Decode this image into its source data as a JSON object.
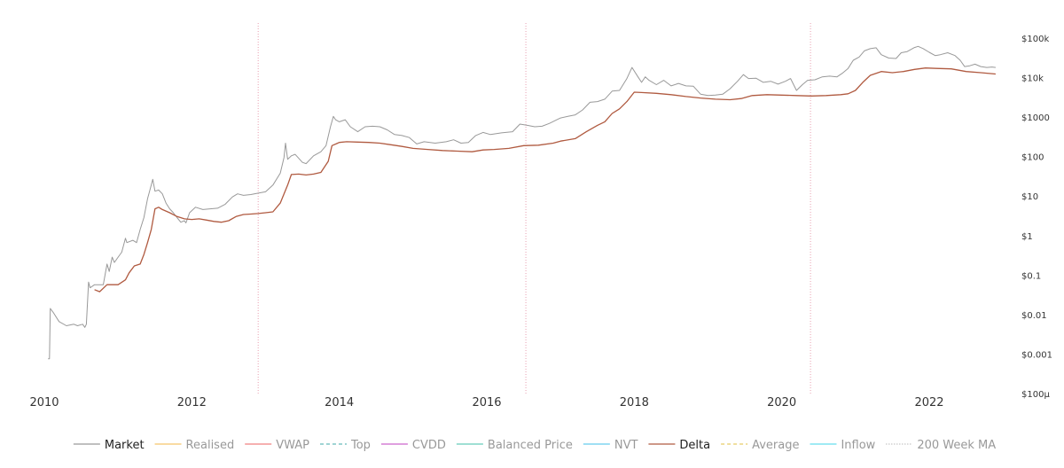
{
  "chart_data": {
    "type": "line",
    "xlim": [
      2010.0,
      2022.9
    ],
    "ylog": true,
    "ylim": [
      0.0001,
      100000
    ],
    "x_ticks": [
      {
        "value": 2010,
        "label": "2010"
      },
      {
        "value": 2012,
        "label": "2012"
      },
      {
        "value": 2014,
        "label": "2014"
      },
      {
        "value": 2016,
        "label": "2016"
      },
      {
        "value": 2018,
        "label": "2018"
      },
      {
        "value": 2020,
        "label": "2020"
      },
      {
        "value": 2022,
        "label": "2022"
      }
    ],
    "y_ticks": [
      {
        "value": 100000,
        "label": "$100k"
      },
      {
        "value": 10000,
        "label": "$10k"
      },
      {
        "value": 1000,
        "label": "$1000"
      },
      {
        "value": 100,
        "label": "$100"
      },
      {
        "value": 10,
        "label": "$10"
      },
      {
        "value": 1,
        "label": "$1"
      },
      {
        "value": 0.1,
        "label": "$0.1"
      },
      {
        "value": 0.01,
        "label": "$0.01"
      },
      {
        "value": 0.001,
        "label": "$0.001"
      },
      {
        "value": 0.0001,
        "label": "$100µ"
      }
    ],
    "halving_lines": [
      2012.9,
      2016.53,
      2020.39
    ],
    "grid": false,
    "legend_position": "bottom",
    "legend": [
      {
        "name": "Market",
        "color": "#999999",
        "dash": "solid",
        "active": true
      },
      {
        "name": "Realised",
        "color": "#f5c56b",
        "dash": "solid",
        "active": false
      },
      {
        "name": "VWAP",
        "color": "#f08080",
        "dash": "solid",
        "active": false
      },
      {
        "name": "Top",
        "color": "#66bbbb",
        "dash": "dashed",
        "active": false
      },
      {
        "name": "CVDD",
        "color": "#cc66cc",
        "dash": "solid",
        "active": false
      },
      {
        "name": "Balanced Price",
        "color": "#66ccbb",
        "dash": "solid",
        "active": false
      },
      {
        "name": "NVT",
        "color": "#66ccee",
        "dash": "solid",
        "active": false
      },
      {
        "name": "Delta",
        "color": "#b05a40",
        "dash": "solid",
        "active": true
      },
      {
        "name": "Average",
        "color": "#e8cc66",
        "dash": "dashed",
        "active": false
      },
      {
        "name": "Inflow",
        "color": "#66ddee",
        "dash": "solid",
        "active": false
      },
      {
        "name": "200 Week MA",
        "color": "#aaaaaa",
        "dash": "dotted",
        "active": false
      }
    ],
    "series": [
      {
        "name": "Market",
        "color": "#999999",
        "points": [
          [
            2010.05,
            0.0008
          ],
          [
            2010.07,
            0.0008
          ],
          [
            2010.08,
            0.015
          ],
          [
            2010.12,
            0.012
          ],
          [
            2010.2,
            0.007
          ],
          [
            2010.3,
            0.0055
          ],
          [
            2010.4,
            0.006
          ],
          [
            2010.45,
            0.0055
          ],
          [
            2010.52,
            0.006
          ],
          [
            2010.55,
            0.005
          ],
          [
            2010.57,
            0.006
          ],
          [
            2010.6,
            0.07
          ],
          [
            2010.62,
            0.05
          ],
          [
            2010.68,
            0.06
          ],
          [
            2010.75,
            0.06
          ],
          [
            2010.8,
            0.06
          ],
          [
            2010.85,
            0.2
          ],
          [
            2010.88,
            0.13
          ],
          [
            2010.92,
            0.3
          ],
          [
            2010.95,
            0.22
          ],
          [
            2011.0,
            0.3
          ],
          [
            2011.05,
            0.4
          ],
          [
            2011.1,
            0.9
          ],
          [
            2011.12,
            0.7
          ],
          [
            2011.2,
            0.8
          ],
          [
            2011.25,
            0.7
          ],
          [
            2011.3,
            1.5
          ],
          [
            2011.35,
            3
          ],
          [
            2011.4,
            9
          ],
          [
            2011.45,
            20
          ],
          [
            2011.47,
            28
          ],
          [
            2011.5,
            14
          ],
          [
            2011.55,
            15
          ],
          [
            2011.6,
            12
          ],
          [
            2011.65,
            7
          ],
          [
            2011.7,
            5
          ],
          [
            2011.75,
            4
          ],
          [
            2011.8,
            3
          ],
          [
            2011.85,
            2.3
          ],
          [
            2011.9,
            2.5
          ],
          [
            2011.92,
            2.2
          ],
          [
            2011.97,
            4
          ],
          [
            2012.05,
            5.5
          ],
          [
            2012.15,
            4.8
          ],
          [
            2012.25,
            5
          ],
          [
            2012.35,
            5.2
          ],
          [
            2012.45,
            6.5
          ],
          [
            2012.55,
            10
          ],
          [
            2012.62,
            12
          ],
          [
            2012.7,
            11
          ],
          [
            2012.8,
            11.5
          ],
          [
            2012.9,
            12.5
          ],
          [
            2013.0,
            13.5
          ],
          [
            2013.1,
            20
          ],
          [
            2013.2,
            40
          ],
          [
            2013.25,
            100
          ],
          [
            2013.27,
            230
          ],
          [
            2013.3,
            90
          ],
          [
            2013.35,
            110
          ],
          [
            2013.4,
            120
          ],
          [
            2013.5,
            75
          ],
          [
            2013.55,
            70
          ],
          [
            2013.65,
            110
          ],
          [
            2013.75,
            140
          ],
          [
            2013.82,
            200
          ],
          [
            2013.88,
            600
          ],
          [
            2013.92,
            1100
          ],
          [
            2013.95,
            900
          ],
          [
            2014.0,
            800
          ],
          [
            2014.08,
            900
          ],
          [
            2014.15,
            600
          ],
          [
            2014.25,
            450
          ],
          [
            2014.35,
            600
          ],
          [
            2014.45,
            620
          ],
          [
            2014.55,
            600
          ],
          [
            2014.65,
            500
          ],
          [
            2014.75,
            380
          ],
          [
            2014.85,
            360
          ],
          [
            2014.95,
            320
          ],
          [
            2015.05,
            220
          ],
          [
            2015.15,
            250
          ],
          [
            2015.3,
            230
          ],
          [
            2015.45,
            250
          ],
          [
            2015.55,
            280
          ],
          [
            2015.65,
            230
          ],
          [
            2015.75,
            240
          ],
          [
            2015.85,
            360
          ],
          [
            2015.95,
            430
          ],
          [
            2016.05,
            380
          ],
          [
            2016.2,
            420
          ],
          [
            2016.35,
            450
          ],
          [
            2016.45,
            700
          ],
          [
            2016.55,
            650
          ],
          [
            2016.65,
            600
          ],
          [
            2016.75,
            620
          ],
          [
            2016.85,
            730
          ],
          [
            2016.95,
            900
          ],
          [
            2017.0,
            1000
          ],
          [
            2017.1,
            1100
          ],
          [
            2017.2,
            1200
          ],
          [
            2017.3,
            1600
          ],
          [
            2017.4,
            2500
          ],
          [
            2017.5,
            2600
          ],
          [
            2017.6,
            3000
          ],
          [
            2017.7,
            4800
          ],
          [
            2017.8,
            5000
          ],
          [
            2017.9,
            10000
          ],
          [
            2017.97,
            19000
          ],
          [
            2018.05,
            11000
          ],
          [
            2018.1,
            8000
          ],
          [
            2018.15,
            11000
          ],
          [
            2018.2,
            9000
          ],
          [
            2018.3,
            7000
          ],
          [
            2018.4,
            9000
          ],
          [
            2018.5,
            6500
          ],
          [
            2018.6,
            7500
          ],
          [
            2018.7,
            6500
          ],
          [
            2018.8,
            6400
          ],
          [
            2018.9,
            4000
          ],
          [
            2019.0,
            3700
          ],
          [
            2019.1,
            3800
          ],
          [
            2019.2,
            4000
          ],
          [
            2019.3,
            5500
          ],
          [
            2019.4,
            8500
          ],
          [
            2019.48,
            12500
          ],
          [
            2019.55,
            10000
          ],
          [
            2019.65,
            10200
          ],
          [
            2019.75,
            8000
          ],
          [
            2019.85,
            8500
          ],
          [
            2019.95,
            7200
          ],
          [
            2020.05,
            8500
          ],
          [
            2020.12,
            10000
          ],
          [
            2020.2,
            5000
          ],
          [
            2020.28,
            7000
          ],
          [
            2020.35,
            9000
          ],
          [
            2020.45,
            9300
          ],
          [
            2020.55,
            11000
          ],
          [
            2020.65,
            11500
          ],
          [
            2020.75,
            11000
          ],
          [
            2020.82,
            13500
          ],
          [
            2020.9,
            18000
          ],
          [
            2020.97,
            29000
          ],
          [
            2021.05,
            35000
          ],
          [
            2021.12,
            50000
          ],
          [
            2021.2,
            57000
          ],
          [
            2021.28,
            60000
          ],
          [
            2021.35,
            40000
          ],
          [
            2021.45,
            33000
          ],
          [
            2021.55,
            32000
          ],
          [
            2021.62,
            45000
          ],
          [
            2021.7,
            48000
          ],
          [
            2021.8,
            61000
          ],
          [
            2021.85,
            65000
          ],
          [
            2021.92,
            57000
          ],
          [
            2022.0,
            46000
          ],
          [
            2022.08,
            38000
          ],
          [
            2022.15,
            40000
          ],
          [
            2022.25,
            45000
          ],
          [
            2022.35,
            38000
          ],
          [
            2022.42,
            29000
          ],
          [
            2022.48,
            20000
          ],
          [
            2022.55,
            21000
          ],
          [
            2022.62,
            23000
          ],
          [
            2022.7,
            20000
          ],
          [
            2022.78,
            19000
          ],
          [
            2022.85,
            19500
          ],
          [
            2022.9,
            19000
          ]
        ]
      },
      {
        "name": "Delta",
        "color": "#b05a40",
        "points": [
          [
            2010.68,
            0.045
          ],
          [
            2010.75,
            0.04
          ],
          [
            2010.85,
            0.06
          ],
          [
            2011.0,
            0.06
          ],
          [
            2011.1,
            0.08
          ],
          [
            2011.15,
            0.12
          ],
          [
            2011.22,
            0.18
          ],
          [
            2011.3,
            0.2
          ],
          [
            2011.35,
            0.35
          ],
          [
            2011.4,
            0.7
          ],
          [
            2011.45,
            1.5
          ],
          [
            2011.5,
            5
          ],
          [
            2011.55,
            5.5
          ],
          [
            2011.6,
            4.8
          ],
          [
            2011.7,
            4
          ],
          [
            2011.8,
            3.2
          ],
          [
            2011.9,
            2.8
          ],
          [
            2012.0,
            2.7
          ],
          [
            2012.1,
            2.8
          ],
          [
            2012.2,
            2.6
          ],
          [
            2012.3,
            2.4
          ],
          [
            2012.4,
            2.3
          ],
          [
            2012.5,
            2.5
          ],
          [
            2012.6,
            3.2
          ],
          [
            2012.7,
            3.6
          ],
          [
            2012.8,
            3.7
          ],
          [
            2012.9,
            3.8
          ],
          [
            2013.0,
            4
          ],
          [
            2013.1,
            4.2
          ],
          [
            2013.2,
            7
          ],
          [
            2013.3,
            20
          ],
          [
            2013.35,
            37
          ],
          [
            2013.45,
            38
          ],
          [
            2013.55,
            36
          ],
          [
            2013.65,
            38
          ],
          [
            2013.75,
            42
          ],
          [
            2013.85,
            80
          ],
          [
            2013.9,
            200
          ],
          [
            2014.0,
            240
          ],
          [
            2014.1,
            250
          ],
          [
            2014.25,
            245
          ],
          [
            2014.4,
            240
          ],
          [
            2014.55,
            230
          ],
          [
            2014.7,
            210
          ],
          [
            2014.85,
            190
          ],
          [
            2015.0,
            170
          ],
          [
            2015.2,
            160
          ],
          [
            2015.4,
            150
          ],
          [
            2015.6,
            145
          ],
          [
            2015.8,
            140
          ],
          [
            2015.95,
            155
          ],
          [
            2016.1,
            160
          ],
          [
            2016.3,
            170
          ],
          [
            2016.5,
            200
          ],
          [
            2016.7,
            205
          ],
          [
            2016.9,
            230
          ],
          [
            2017.0,
            260
          ],
          [
            2017.2,
            300
          ],
          [
            2017.35,
            450
          ],
          [
            2017.5,
            650
          ],
          [
            2017.6,
            800
          ],
          [
            2017.7,
            1300
          ],
          [
            2017.8,
            1700
          ],
          [
            2017.9,
            2600
          ],
          [
            2018.0,
            4500
          ],
          [
            2018.1,
            4400
          ],
          [
            2018.3,
            4200
          ],
          [
            2018.5,
            3900
          ],
          [
            2018.7,
            3500
          ],
          [
            2018.9,
            3200
          ],
          [
            2019.1,
            3000
          ],
          [
            2019.3,
            2900
          ],
          [
            2019.45,
            3100
          ],
          [
            2019.6,
            3700
          ],
          [
            2019.8,
            3900
          ],
          [
            2020.0,
            3800
          ],
          [
            2020.2,
            3700
          ],
          [
            2020.4,
            3600
          ],
          [
            2020.6,
            3700
          ],
          [
            2020.8,
            3900
          ],
          [
            2020.9,
            4100
          ],
          [
            2021.0,
            5000
          ],
          [
            2021.1,
            8000
          ],
          [
            2021.2,
            12000
          ],
          [
            2021.35,
            15000
          ],
          [
            2021.5,
            14000
          ],
          [
            2021.65,
            15000
          ],
          [
            2021.8,
            17000
          ],
          [
            2021.95,
            18500
          ],
          [
            2022.1,
            18000
          ],
          [
            2022.3,
            17500
          ],
          [
            2022.5,
            15000
          ],
          [
            2022.7,
            14000
          ],
          [
            2022.9,
            13000
          ]
        ]
      }
    ]
  }
}
